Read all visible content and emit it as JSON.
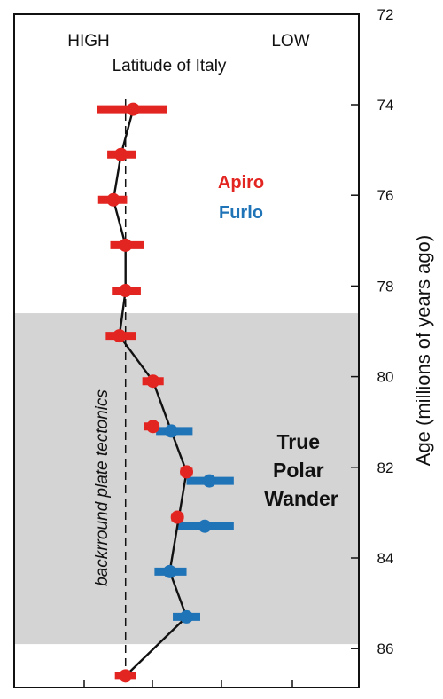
{
  "chart_data": {
    "type": "scatter",
    "title": "Latitude of Italy",
    "x_axis": {
      "low_end_label": "HIGH",
      "high_end_label": "LOW",
      "xlim": [
        -4,
        9.5
      ]
    },
    "y_axis": {
      "label": "Age (millions of years ago)",
      "ylim": [
        72,
        87
      ],
      "inverted": true,
      "ticks": [
        72,
        74,
        76,
        78,
        80,
        82,
        84,
        86
      ]
    },
    "shaded_band": {
      "from": 78.6,
      "to": 85.9,
      "color": "#d4d4d4",
      "label_lines": [
        "True",
        "Polar",
        "Wander"
      ]
    },
    "reference_line": {
      "x": 0.1,
      "from": 74.0,
      "to": 86.6,
      "label": "backrround plate tectonics"
    },
    "legend": [
      {
        "name": "Apiro",
        "color": "#e32521"
      },
      {
        "name": "Furlo",
        "color": "#1f73b7"
      }
    ],
    "series": [
      {
        "name": "Apiro",
        "color": "#e32521",
        "points": [
          {
            "age": 74.1,
            "lat": 0.6,
            "err_low": -1.8,
            "err_high": 2.8
          },
          {
            "age": 75.1,
            "lat": -0.2,
            "err_low": -1.1,
            "err_high": 0.8
          },
          {
            "age": 76.1,
            "lat": -0.7,
            "err_low": -1.7,
            "err_high": 0.2
          },
          {
            "age": 77.1,
            "lat": 0.1,
            "err_low": -0.9,
            "err_high": 1.3
          },
          {
            "age": 78.1,
            "lat": 0.1,
            "err_low": -0.8,
            "err_high": 1.1
          },
          {
            "age": 79.1,
            "lat": -0.3,
            "err_low": -1.2,
            "err_high": 0.8
          },
          {
            "age": 80.1,
            "lat": 1.9,
            "err_low": 1.2,
            "err_high": 2.6
          },
          {
            "age": 81.1,
            "lat": 1.9,
            "err_low": 1.3,
            "err_high": 2.3
          },
          {
            "age": 82.1,
            "lat": 4.1,
            "err_low": 3.7,
            "err_high": 4.5
          },
          {
            "age": 83.1,
            "lat": 3.5,
            "err_low": 3.1,
            "err_high": 3.9
          },
          {
            "age": 86.6,
            "lat": 0.1,
            "err_low": -0.6,
            "err_high": 0.8
          }
        ]
      },
      {
        "name": "Furlo",
        "color": "#1f73b7",
        "points": [
          {
            "age": 81.2,
            "lat": 3.1,
            "err_low": 2.1,
            "err_high": 4.5
          },
          {
            "age": 82.3,
            "lat": 5.6,
            "err_low": 4.1,
            "err_high": 7.2
          },
          {
            "age": 83.3,
            "lat": 5.3,
            "err_low": 3.5,
            "err_high": 7.2
          },
          {
            "age": 84.3,
            "lat": 3.0,
            "err_low": 2.0,
            "err_high": 4.1
          },
          {
            "age": 85.3,
            "lat": 4.1,
            "err_low": 3.2,
            "err_high": 5.0
          }
        ]
      }
    ],
    "connecting_line": [
      {
        "age": 74.1,
        "lat": 0.6
      },
      {
        "age": 75.1,
        "lat": -0.2
      },
      {
        "age": 76.1,
        "lat": -0.7
      },
      {
        "age": 77.1,
        "lat": 0.1
      },
      {
        "age": 78.1,
        "lat": 0.1
      },
      {
        "age": 79.1,
        "lat": -0.3
      },
      {
        "age": 80.1,
        "lat": 1.9
      },
      {
        "age": 81.2,
        "lat": 3.1
      },
      {
        "age": 82.1,
        "lat": 4.1
      },
      {
        "age": 84.3,
        "lat": 3.0
      },
      {
        "age": 85.3,
        "lat": 4.1
      },
      {
        "age": 86.6,
        "lat": 0.1
      }
    ]
  }
}
